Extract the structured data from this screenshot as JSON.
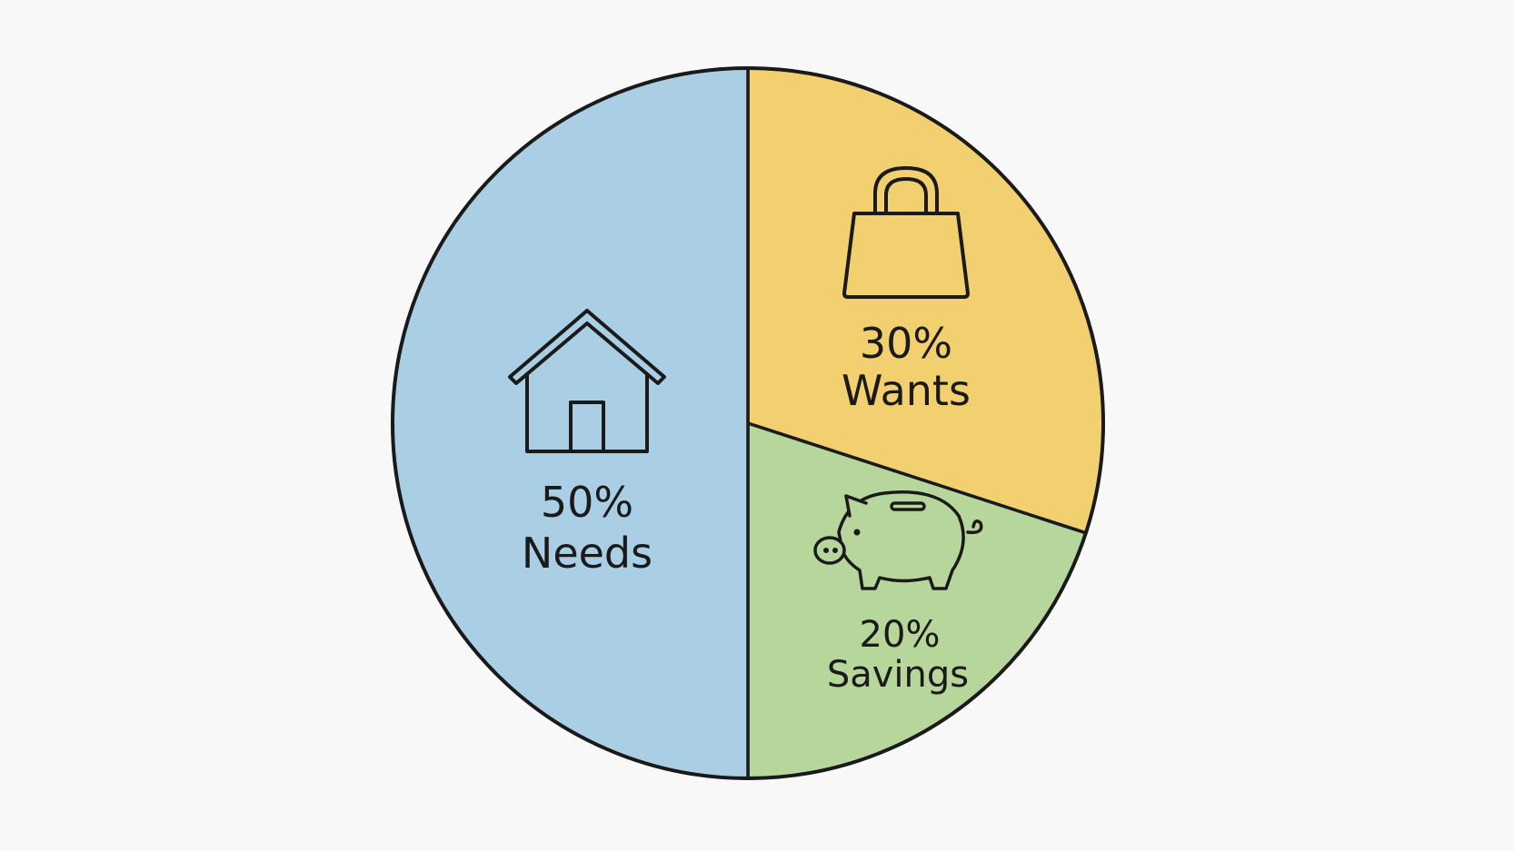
{
  "chart_data": {
    "type": "pie",
    "title": "",
    "slices": [
      {
        "label": "Wants",
        "value": 30,
        "value_label": "30%",
        "color": "#f3d06f",
        "icon": "shopping-bag-icon"
      },
      {
        "label": "Savings",
        "value": 20,
        "value_label": "20%",
        "color": "#b6d69b",
        "icon": "piggy-bank-icon"
      },
      {
        "label": "Needs",
        "value": 50,
        "value_label": "50%",
        "color": "#aacfe5",
        "icon": "house-icon"
      }
    ],
    "start_angle": "top",
    "direction": "clockwise",
    "legend": "none",
    "outline_color": "#1a1a1a"
  }
}
